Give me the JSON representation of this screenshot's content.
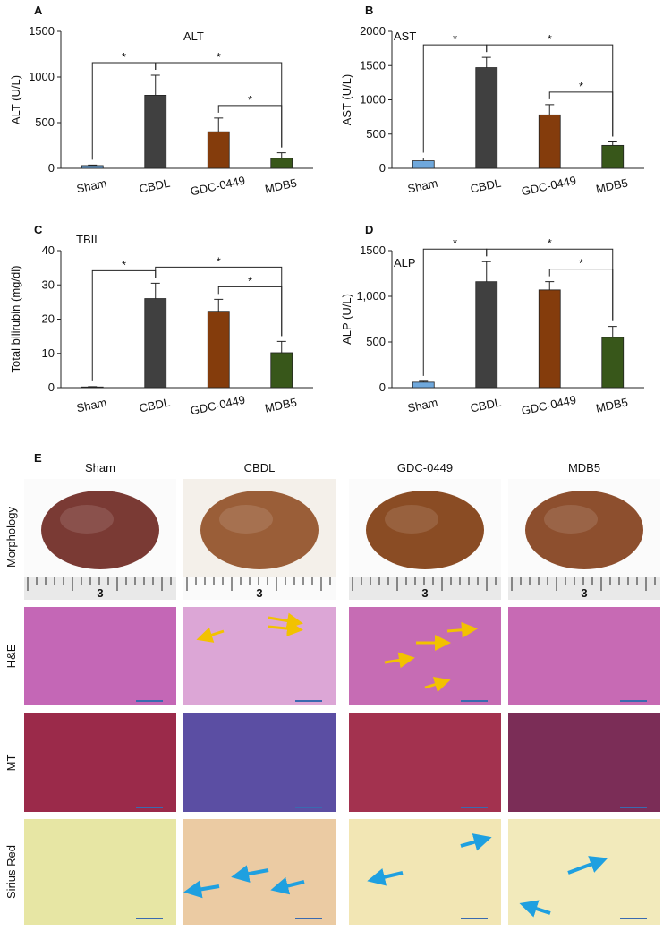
{
  "chart_data": [
    {
      "type": "bar",
      "panel": "A",
      "title": "ALT",
      "ylabel": "ALT (U/L)",
      "categories": [
        "Sham",
        "CBDL",
        "GDC-0449",
        "MDB5"
      ],
      "values": [
        30,
        800,
        400,
        110
      ],
      "errors": [
        5,
        220,
        150,
        60
      ],
      "colors": [
        "#6fa8dc",
        "#404040",
        "#843c0c",
        "#38571a"
      ],
      "ylim": [
        0,
        1500
      ],
      "yticks": [
        0,
        500,
        1000,
        1500
      ],
      "significance": [
        {
          "pair": [
            0,
            1
          ],
          "label": "*"
        },
        {
          "pair": [
            2,
            3
          ],
          "label": "*"
        },
        {
          "pair": [
            1,
            3
          ],
          "label": "*"
        }
      ]
    },
    {
      "type": "bar",
      "panel": "B",
      "title": "AST",
      "ylabel": "AST (U/L)",
      "categories": [
        "Sham",
        "CBDL",
        "GDC-0449",
        "MDB5"
      ],
      "values": [
        110,
        1470,
        780,
        335
      ],
      "errors": [
        40,
        150,
        150,
        50
      ],
      "colors": [
        "#6fa8dc",
        "#404040",
        "#843c0c",
        "#38571a"
      ],
      "ylim": [
        0,
        2000
      ],
      "yticks": [
        0,
        500,
        1000,
        1500,
        2000
      ],
      "significance": [
        {
          "pair": [
            0,
            1
          ],
          "label": "*"
        },
        {
          "pair": [
            2,
            3
          ],
          "label": "*"
        },
        {
          "pair": [
            1,
            3
          ],
          "label": "*"
        }
      ]
    },
    {
      "type": "bar",
      "panel": "C",
      "title": "TBIL",
      "ylabel": "Total bilirubin (mg/dl)",
      "categories": [
        "Sham",
        "CBDL",
        "GDC-0449",
        "MDB5"
      ],
      "values": [
        0.2,
        26,
        22.3,
        10.2
      ],
      "errors": [
        0.1,
        4.5,
        3.5,
        3.3
      ],
      "colors": [
        "#6fa8dc",
        "#404040",
        "#843c0c",
        "#38571a"
      ],
      "ylim": [
        0,
        40
      ],
      "yticks": [
        0,
        10,
        20,
        30,
        40
      ],
      "significance": [
        {
          "pair": [
            0,
            1
          ],
          "label": "*"
        },
        {
          "pair": [
            2,
            3
          ],
          "label": "*"
        },
        {
          "pair": [
            1,
            3
          ],
          "label": "*"
        }
      ]
    },
    {
      "type": "bar",
      "panel": "D",
      "title": "ALP",
      "ylabel": "ALP (U/L)",
      "categories": [
        "Sham",
        "CBDL",
        "GDC-0449",
        "MDB5"
      ],
      "values": [
        60,
        1160,
        1070,
        550
      ],
      "errors": [
        10,
        220,
        90,
        120
      ],
      "colors": [
        "#6fa8dc",
        "#404040",
        "#843c0c",
        "#38571a"
      ],
      "ylim": [
        0,
        1500
      ],
      "yticks": [
        0,
        500,
        {
          "value": 1000,
          "label": "1,000"
        },
        1500
      ],
      "significance": [
        {
          "pair": [
            0,
            1
          ],
          "label": "*"
        },
        {
          "pair": [
            2,
            3
          ],
          "label": "*"
        },
        {
          "pair": [
            1,
            3
          ],
          "label": "*"
        }
      ]
    }
  ],
  "panel_e": {
    "label": "E",
    "columns": [
      "Sham",
      "CBDL",
      "GDC-0449",
      "MDB5"
    ],
    "rows": [
      "Morphology",
      "H&E",
      "MT",
      "Sirius Red"
    ],
    "ruler_labels": [
      "3",
      "3",
      "3",
      "3"
    ]
  }
}
